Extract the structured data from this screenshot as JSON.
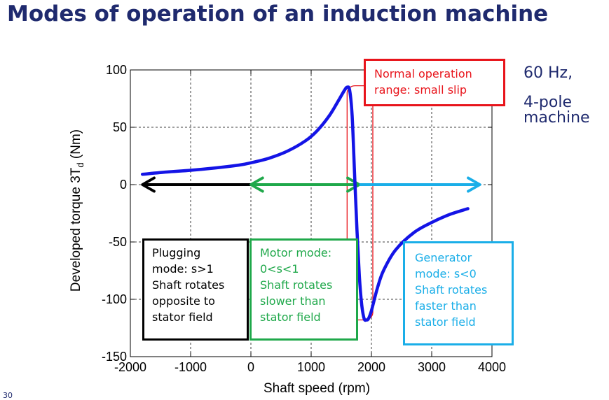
{
  "title": "Modes of operation of an induction machine",
  "side_note": {
    "line1": "60 Hz,",
    "line2": "4-pole",
    "line3": "machine"
  },
  "page_number": "30",
  "annotations": {
    "normal": {
      "line1": "Normal operation",
      "line2": "range: small slip",
      "color": "#e8141b"
    },
    "plugging": {
      "lines": [
        "Plugging",
        "mode: s>1",
        "Shaft rotates",
        "opposite to",
        "stator field"
      ],
      "color": "#000000"
    },
    "motor": {
      "lines": [
        "Motor mode:",
        "0<s<1",
        "Shaft rotates",
        "slower than",
        "stator field"
      ],
      "color": "#1fa84a"
    },
    "generator": {
      "lines": [
        "Generator",
        "mode: s<0",
        "Shaft rotates",
        "faster than",
        "stator field"
      ],
      "color": "#1aaee8"
    }
  },
  "chart_data": {
    "type": "line",
    "xlabel": "Shaft speed (rpm)",
    "ylabel": "Developed torque 3T",
    "ylabel_subscript": "d",
    "ylabel_unit": " (Nm)",
    "xlim": [
      -2000,
      4000
    ],
    "ylim": [
      -150,
      100
    ],
    "x_ticks": [
      -2000,
      -1000,
      0,
      1000,
      2000,
      3000,
      4000
    ],
    "y_ticks": [
      100,
      50,
      0,
      -50,
      -100,
      -150
    ],
    "grid": true,
    "grid_style": "dashed",
    "series": [
      {
        "color": "#1414e6",
        "x": [
          -1800,
          -1400,
          -1000,
          -600,
          -200,
          0,
          300,
          600,
          900,
          1100,
          1300,
          1450,
          1550,
          1600,
          1640,
          1680,
          1720,
          1760,
          1800,
          1840,
          1880,
          1920,
          1950,
          2000,
          2100,
          2200,
          2400,
          2700,
          3000,
          3300,
          3600
        ],
        "y": [
          9,
          11,
          12.5,
          14.5,
          17,
          19,
          23,
          29,
          38,
          47,
          60,
          73,
          82,
          85,
          82,
          60,
          10,
          -40,
          -80,
          -105,
          -117,
          -118,
          -117,
          -110,
          -90,
          -75,
          -57,
          -42,
          -33,
          -26,
          -21
        ]
      }
    ],
    "mode_ranges": [
      {
        "name": "plugging",
        "from": 0,
        "to": -1800,
        "y": 0,
        "color": "#000000"
      },
      {
        "name": "motor",
        "from": 0,
        "to": 1800,
        "y": 0,
        "color": "#1fa84a",
        "both_ends": true
      },
      {
        "name": "generator",
        "from": 1800,
        "to": 3800,
        "y": 0,
        "color": "#1aaee8"
      }
    ],
    "normal_range": {
      "x_from": 1550,
      "x_to": 2000,
      "y_from": -118,
      "y_to": 85,
      "color": "#e8141b"
    }
  }
}
